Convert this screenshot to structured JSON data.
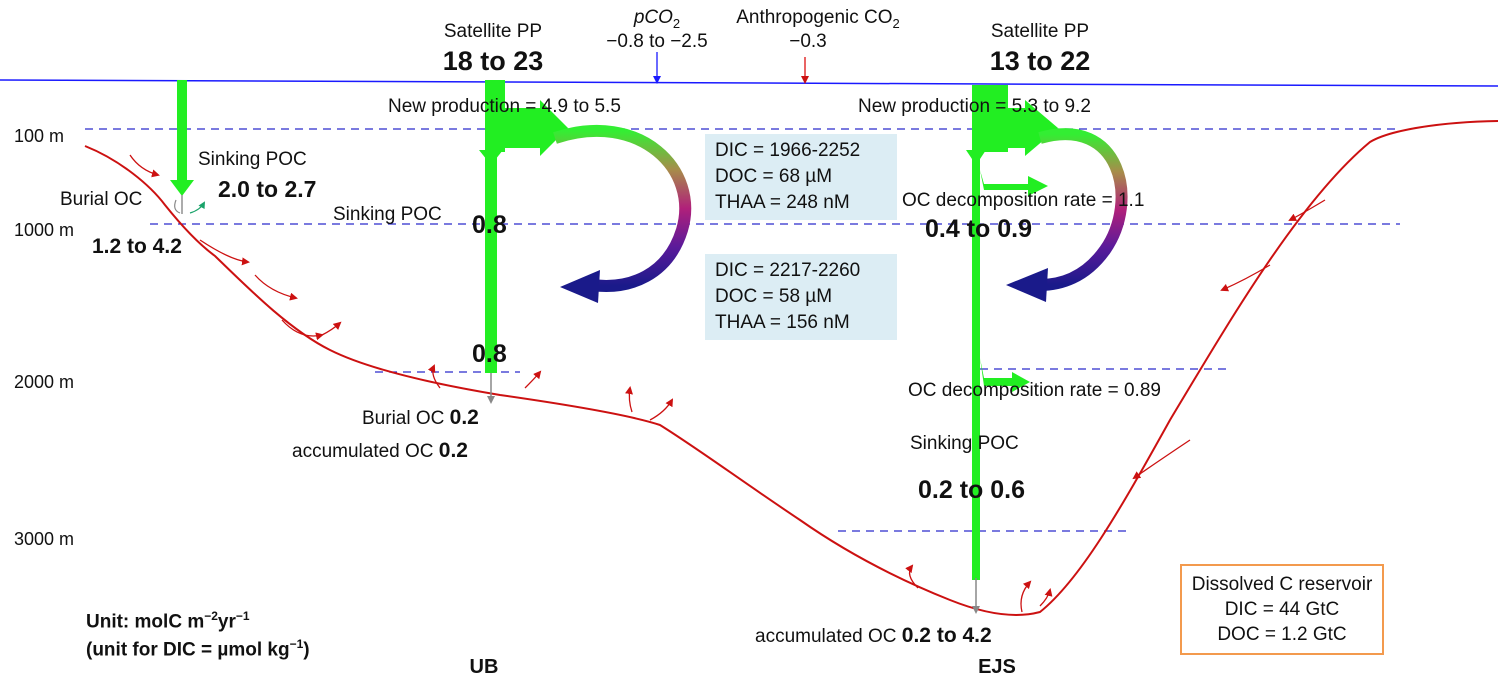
{
  "depth_labels": [
    "100 m",
    "1000 m",
    "2000 m",
    "3000 m"
  ],
  "top": {
    "pco2_name": "pCO",
    "pco2_sub": "2",
    "pco2_value": "−0.8 to −2.5",
    "anthro_name": "Anthropogenic CO",
    "anthro_sub": "2",
    "anthro_value": "−0.3"
  },
  "left_slope": {
    "sinking_label": "Sinking POC",
    "sinking_value": "2.0 to 2.7",
    "burial_label": "Burial OC",
    "burial_value": "1.2 to 4.2"
  },
  "ub": {
    "name": "UB",
    "satellite_label": "Satellite PP",
    "satellite_value": "18 to 23",
    "new_production": "New production = 4.9 to 5.5",
    "sinking_label": "Sinking POC",
    "sinking_value_1000": "0.8",
    "sinking_value_2000": "0.8",
    "burial_label": "Burial OC",
    "burial_value": "0.2",
    "accum_label": "accumulated OC",
    "accum_value": "0.2"
  },
  "ejs": {
    "name": "EJS",
    "satellite_label": "Satellite PP",
    "satellite_value": "13 to 22",
    "new_production": "New production = 5.3 to 9.2",
    "decomp_label_1": "OC decomposition rate = 1.1",
    "decomp_value_1": "0.4 to 0.9",
    "decomp_label_2": "OC decomposition rate = 0.89",
    "sinking_label": "Sinking POC",
    "sinking_value": "0.2 to 0.6",
    "accum_label": "accumulated OC",
    "accum_value": "0.2 to 4.2"
  },
  "upper_box": {
    "dic": "DIC = 1966-2252",
    "doc": "DOC = 68 µM",
    "thaa": "THAA = 248 nM"
  },
  "lower_box": {
    "dic": "DIC = 2217-2260",
    "doc": "DOC = 58 µM",
    "thaa": "THAA = 156 nM"
  },
  "reservoir": {
    "title": "Dissolved C reservoir",
    "dic": "DIC = 44 GtC",
    "doc": "DOC = 1.2 GtC"
  },
  "units": {
    "line1_pre": "Unit: molC m",
    "line1_sup1": "−2",
    "line1_mid": "yr",
    "line1_sup2": "−1",
    "line2_pre": "(unit for DIC = µmol kg",
    "line2_sup": "−1",
    "line2_post": ")"
  },
  "colors": {
    "sea_surface": "#1a1aff",
    "depth_dash": "#2a2acc",
    "seafloor": "#cc1111",
    "flux_green": "#22ee22",
    "burial_gray": "#888888",
    "box_fill": "#dcedf4",
    "reservoir_border": "#f39a4d"
  }
}
